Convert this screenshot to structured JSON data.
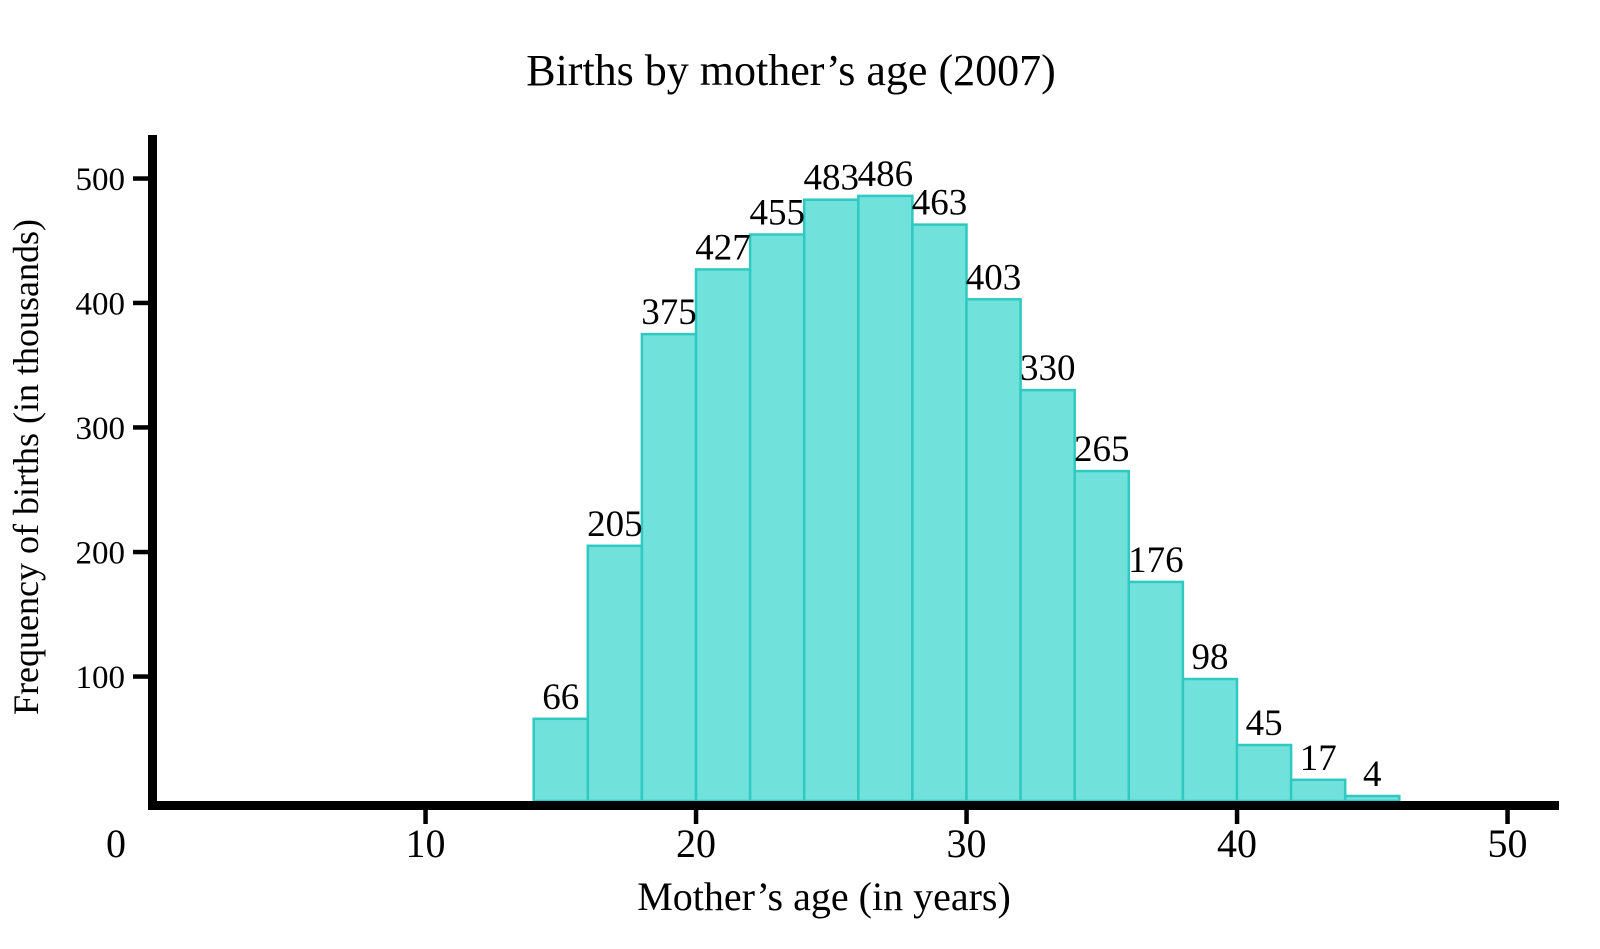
{
  "chart_data": {
    "type": "bar",
    "subtype": "histogram",
    "title": "Births by mother’s age (2007)",
    "xlabel": "Mother’s age (in years)",
    "ylabel": "Frequency of births (in thousands)",
    "bin_width_years": 2,
    "bin_edges": [
      14,
      16,
      18,
      20,
      22,
      24,
      26,
      28,
      30,
      32,
      34,
      36,
      38,
      40,
      42,
      44,
      46
    ],
    "values": [
      66,
      205,
      375,
      427,
      455,
      483,
      486,
      463,
      403,
      330,
      265,
      176,
      98,
      45,
      17,
      4
    ],
    "bar_value_labels": [
      "66",
      "205",
      "375",
      "427",
      "455",
      "483",
      "486",
      "463",
      "403",
      "330",
      "265",
      "176",
      "98",
      "45",
      "17",
      "4"
    ],
    "x_ticks": [
      0,
      10,
      20,
      30,
      40,
      50
    ],
    "y_ticks": [
      100,
      200,
      300,
      400,
      500
    ],
    "xlim": [
      0,
      51.9
    ],
    "ylim": [
      0,
      535
    ],
    "grid": false,
    "legend": null,
    "colors": {
      "bar_fill": "#70E2DB",
      "bar_stroke": "#30C9C2",
      "axis": "#000000",
      "text": "#000000",
      "background": "#FFFFFF"
    }
  }
}
